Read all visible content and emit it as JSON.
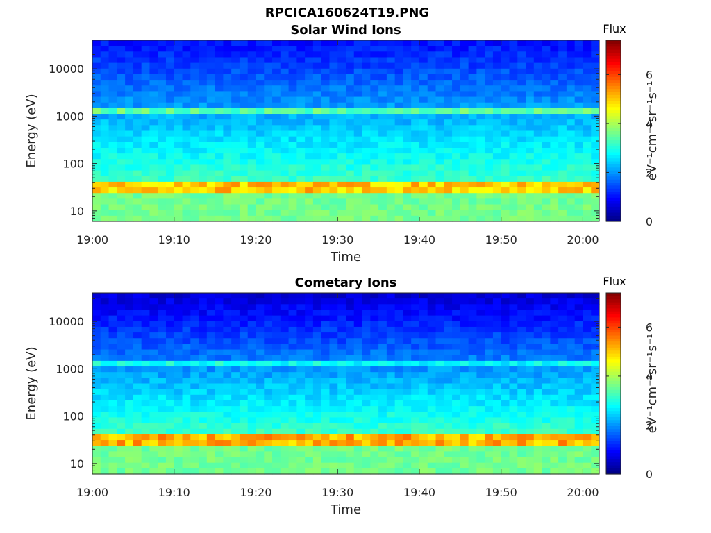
{
  "figure_title": "RPCICA160624T19.PNG",
  "colors": {
    "colormap": [
      "#00008f",
      "#0000ff",
      "#00ffff",
      "#ffff00",
      "#ff0000",
      "#800000"
    ],
    "axis": "#262626"
  },
  "chart_data": [
    {
      "type": "heatmap",
      "title": "Solar Wind Ions",
      "xlabel": "Time",
      "ylabel": "Energy (eV)",
      "x_tick_labels": [
        "19:00",
        "19:10",
        "19:20",
        "19:30",
        "19:40",
        "19:50",
        "20:00"
      ],
      "x_ticks_min": [
        0,
        10,
        20,
        30,
        40,
        50,
        60
      ],
      "xlim_min": [
        0,
        62
      ],
      "y_scale": "log",
      "y_tick_labels": [
        "10",
        "100",
        "1000",
        "10000"
      ],
      "y_ticks": [
        10,
        100,
        1000,
        10000
      ],
      "ylim": [
        6,
        40000
      ],
      "colorbar": {
        "title": "Flux",
        "label": "eV⁻¹cm⁻²sr⁻¹s⁻¹",
        "range": [
          0,
          7.4
        ],
        "tick_labels": [
          "0",
          "2",
          "4",
          "6"
        ],
        "ticks": [
          0,
          2,
          4,
          6
        ]
      },
      "bands": [
        {
          "energy_ev": 32,
          "flux": 5.0
        },
        {
          "energy_ev": 1200,
          "flux": 3.3
        }
      ]
    },
    {
      "type": "heatmap",
      "title": "Cometary Ions",
      "xlabel": "Time",
      "ylabel": "Energy (eV)",
      "x_tick_labels": [
        "19:00",
        "19:10",
        "19:20",
        "19:30",
        "19:40",
        "19:50",
        "20:00"
      ],
      "x_ticks_min": [
        0,
        10,
        20,
        30,
        40,
        50,
        60
      ],
      "xlim_min": [
        0,
        62
      ],
      "y_scale": "log",
      "y_tick_labels": [
        "10",
        "100",
        "1000",
        "10000"
      ],
      "y_ticks": [
        10,
        100,
        1000,
        10000
      ],
      "ylim": [
        6,
        40000
      ],
      "colorbar": {
        "title": "Flux",
        "label": "eV⁻¹cm⁻²sr⁻¹s⁻¹",
        "range": [
          0,
          7.4
        ],
        "tick_labels": [
          "0",
          "2",
          "4",
          "6"
        ],
        "ticks": [
          0,
          2,
          4,
          6
        ]
      },
      "bands": [
        {
          "energy_ev": 32,
          "flux": 5.2
        },
        {
          "energy_ev": 1200,
          "flux": 2.7
        }
      ]
    }
  ]
}
